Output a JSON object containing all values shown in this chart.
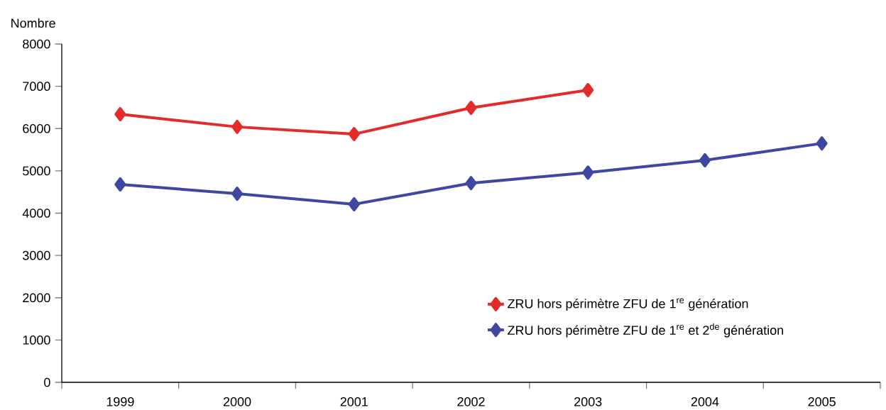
{
  "chart_data": {
    "type": "line",
    "ylabel": "Nombre",
    "categories": [
      "1999",
      "2000",
      "2001",
      "2002",
      "2003",
      "2004",
      "2005"
    ],
    "series": [
      {
        "name": "ZRU hors périmètre ZFU de 1$^{re}$ génération",
        "color": "#e32b2b",
        "values": [
          6340,
          6040,
          5870,
          6490,
          6910,
          null,
          null
        ]
      },
      {
        "name": "ZRU hors périmètre ZFU de 1$^{re}$ et 2$^{de}$ génération",
        "color": "#3f48a0",
        "values": [
          4680,
          4460,
          4210,
          4710,
          4960,
          5250,
          5650
        ]
      }
    ],
    "ylim": [
      0,
      8000
    ],
    "yticks": [
      0,
      1000,
      2000,
      3000,
      4000,
      5000,
      6000,
      7000,
      8000
    ],
    "legend": "bottom right",
    "marker": "diamond",
    "line_style": "solid"
  }
}
